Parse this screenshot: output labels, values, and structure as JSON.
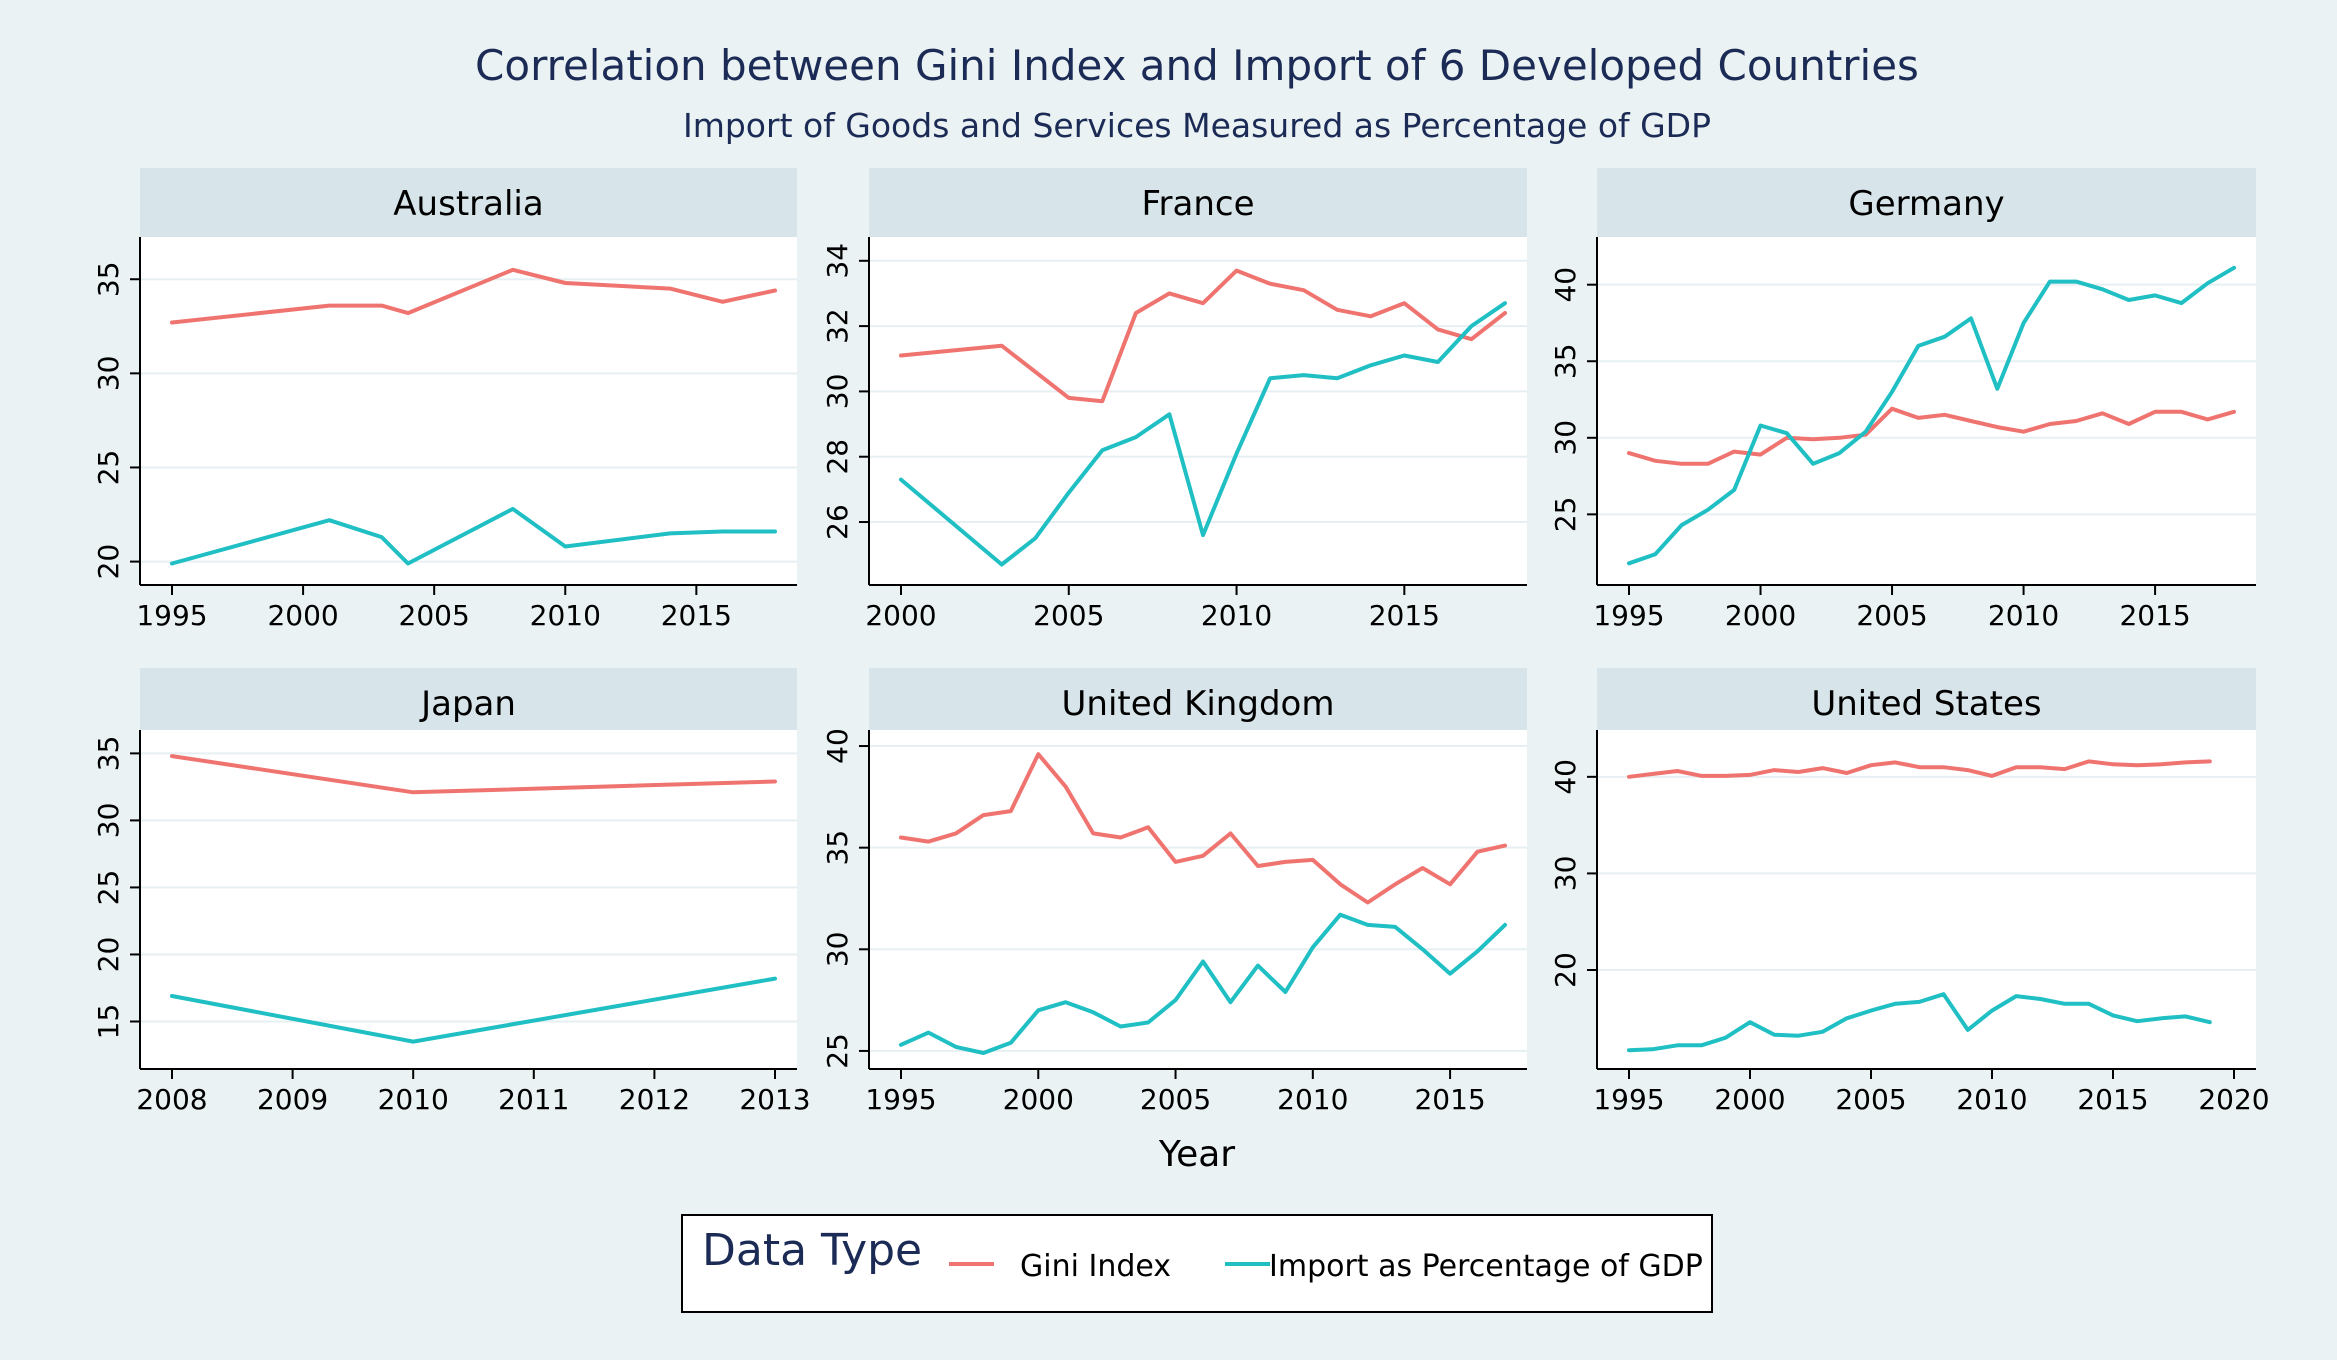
{
  "title": "Correlation between Gini Index and Import of 6 Developed Countries",
  "subtitle": "Import of Goods and Services Measured as Percentage of GDP",
  "xlabel": "Year",
  "colors": {
    "gini": "#ef7470",
    "import": "#1fbfc4",
    "title": "#1b2b55",
    "strip": "#d7e4e9",
    "background": "#eaf2f3",
    "grid": "#e6eff2"
  },
  "legend": {
    "title": "Data Type",
    "items": [
      "Gini Index",
      "Import as Percentage of GDP"
    ],
    "placement": "bottom-center"
  },
  "chart_data": [
    {
      "type": "line",
      "panel": "Australia",
      "xlim": [
        1995,
        2018
      ],
      "xticks": [
        1995,
        2000,
        2005,
        2010,
        2015
      ],
      "ylim": [
        19.5,
        36.5
      ],
      "yticks": [
        20,
        25,
        30,
        35
      ],
      "series": [
        {
          "name": "Gini Index",
          "points": [
            [
              1995,
              32.7
            ],
            [
              2001,
              33.6
            ],
            [
              2003,
              33.6
            ],
            [
              2004,
              33.2
            ],
            [
              2008,
              35.5
            ],
            [
              2010,
              34.8
            ],
            [
              2014,
              34.5
            ],
            [
              2016,
              33.8
            ],
            [
              2018,
              34.4
            ]
          ]
        },
        {
          "name": "Import as Percentage of GDP",
          "points": [
            [
              1995,
              19.9
            ],
            [
              2001,
              22.2
            ],
            [
              2003,
              21.3
            ],
            [
              2004,
              19.9
            ],
            [
              2008,
              22.8
            ],
            [
              2010,
              20.8
            ],
            [
              2014,
              21.5
            ],
            [
              2016,
              21.6
            ],
            [
              2018,
              21.6
            ]
          ]
        }
      ]
    },
    {
      "type": "line",
      "panel": "France",
      "xlim": [
        2000,
        2018
      ],
      "xticks": [
        2000,
        2005,
        2010,
        2015
      ],
      "ylim": [
        24.5,
        34.3
      ],
      "yticks": [
        26,
        28,
        30,
        32,
        34
      ],
      "series": [
        {
          "name": "Gini Index",
          "points": [
            [
              2000,
              31.1
            ],
            [
              2003,
              31.4
            ],
            [
              2005,
              29.8
            ],
            [
              2006,
              29.7
            ],
            [
              2007,
              32.4
            ],
            [
              2008,
              33.0
            ],
            [
              2009,
              32.7
            ],
            [
              2010,
              33.7
            ],
            [
              2011,
              33.3
            ],
            [
              2012,
              33.1
            ],
            [
              2013,
              32.5
            ],
            [
              2014,
              32.3
            ],
            [
              2015,
              32.7
            ],
            [
              2016,
              31.9
            ],
            [
              2017,
              31.6
            ],
            [
              2018,
              32.4
            ]
          ]
        },
        {
          "name": "Import as Percentage of GDP",
          "points": [
            [
              2000,
              27.3
            ],
            [
              2003,
              24.7
            ],
            [
              2004,
              25.5
            ],
            [
              2005,
              26.9
            ],
            [
              2006,
              28.2
            ],
            [
              2007,
              28.6
            ],
            [
              2008,
              29.3
            ],
            [
              2009,
              25.6
            ],
            [
              2010,
              28.1
            ],
            [
              2011,
              30.4
            ],
            [
              2012,
              30.5
            ],
            [
              2013,
              30.4
            ],
            [
              2014,
              30.8
            ],
            [
              2015,
              31.1
            ],
            [
              2016,
              30.9
            ],
            [
              2017,
              32.0
            ],
            [
              2018,
              32.7
            ]
          ]
        }
      ]
    },
    {
      "type": "line",
      "panel": "Germany",
      "xlim": [
        1995,
        2018
      ],
      "xticks": [
        1995,
        2000,
        2005,
        2010,
        2015
      ],
      "ylim": [
        21.3,
        42.2
      ],
      "yticks": [
        25,
        30,
        35,
        40
      ],
      "series": [
        {
          "name": "Gini Index",
          "points": [
            [
              1995,
              29.0
            ],
            [
              1996,
              28.5
            ],
            [
              1997,
              28.3
            ],
            [
              1998,
              28.3
            ],
            [
              1999,
              29.1
            ],
            [
              2000,
              28.9
            ],
            [
              2001,
              30.0
            ],
            [
              2002,
              29.9
            ],
            [
              2003,
              30.0
            ],
            [
              2004,
              30.2
            ],
            [
              2005,
              31.9
            ],
            [
              2006,
              31.3
            ],
            [
              2007,
              31.5
            ],
            [
              2008,
              31.1
            ],
            [
              2009,
              30.7
            ],
            [
              2010,
              30.4
            ],
            [
              2011,
              30.9
            ],
            [
              2012,
              31.1
            ],
            [
              2013,
              31.6
            ],
            [
              2014,
              30.9
            ],
            [
              2015,
              31.7
            ],
            [
              2016,
              31.7
            ],
            [
              2017,
              31.2
            ],
            [
              2018,
              31.7
            ]
          ]
        },
        {
          "name": "Import as Percentage of GDP",
          "points": [
            [
              1995,
              21.8
            ],
            [
              1996,
              22.4
            ],
            [
              1997,
              24.3
            ],
            [
              1998,
              25.3
            ],
            [
              1999,
              26.6
            ],
            [
              2000,
              30.8
            ],
            [
              2001,
              30.3
            ],
            [
              2002,
              28.3
            ],
            [
              2003,
              29.0
            ],
            [
              2004,
              30.4
            ],
            [
              2005,
              33.0
            ],
            [
              2006,
              36.0
            ],
            [
              2007,
              36.6
            ],
            [
              2008,
              37.8
            ],
            [
              2009,
              33.2
            ],
            [
              2010,
              37.5
            ],
            [
              2011,
              40.2
            ],
            [
              2012,
              40.2
            ],
            [
              2013,
              39.7
            ],
            [
              2014,
              39.0
            ],
            [
              2015,
              39.3
            ],
            [
              2016,
              38.8
            ],
            [
              2017,
              40.1
            ],
            [
              2018,
              41.1
            ]
          ]
        }
      ]
    },
    {
      "type": "line",
      "panel": "Japan",
      "xlim": [
        2008,
        2013
      ],
      "xticks": [
        2008,
        2009,
        2010,
        2011,
        2012,
        2013
      ],
      "ylim": [
        12.5,
        35.7
      ],
      "yticks": [
        15,
        20,
        25,
        30,
        35
      ],
      "series": [
        {
          "name": "Gini Index",
          "points": [
            [
              2008,
              34.8
            ],
            [
              2010,
              32.1
            ],
            [
              2013,
              32.9
            ]
          ]
        },
        {
          "name": "Import as Percentage of GDP",
          "points": [
            [
              2008,
              16.9
            ],
            [
              2010,
              13.5
            ],
            [
              2013,
              18.2
            ]
          ]
        }
      ]
    },
    {
      "type": "line",
      "panel": "United Kingdom",
      "xlim": [
        1995,
        2017
      ],
      "xticks": [
        1995,
        2000,
        2005,
        2010,
        2015
      ],
      "ylim": [
        24.8,
        40.1
      ],
      "yticks": [
        25,
        30,
        35,
        40
      ],
      "series": [
        {
          "name": "Gini Index",
          "points": [
            [
              1995,
              35.5
            ],
            [
              1996,
              35.3
            ],
            [
              1997,
              35.7
            ],
            [
              1998,
              36.6
            ],
            [
              1999,
              36.8
            ],
            [
              2000,
              39.6
            ],
            [
              2001,
              38.0
            ],
            [
              2002,
              35.7
            ],
            [
              2003,
              35.5
            ],
            [
              2004,
              36.0
            ],
            [
              2005,
              34.3
            ],
            [
              2006,
              34.6
            ],
            [
              2007,
              35.7
            ],
            [
              2008,
              34.1
            ],
            [
              2009,
              34.3
            ],
            [
              2010,
              34.4
            ],
            [
              2011,
              33.2
            ],
            [
              2012,
              32.3
            ],
            [
              2013,
              33.2
            ],
            [
              2014,
              34.0
            ],
            [
              2015,
              33.2
            ],
            [
              2016,
              34.8
            ],
            [
              2017,
              35.1
            ]
          ]
        },
        {
          "name": "Import as Percentage of GDP",
          "points": [
            [
              1995,
              25.3
            ],
            [
              1996,
              25.9
            ],
            [
              1997,
              25.2
            ],
            [
              1998,
              24.9
            ],
            [
              1999,
              25.4
            ],
            [
              2000,
              27.0
            ],
            [
              2001,
              27.4
            ],
            [
              2002,
              26.9
            ],
            [
              2003,
              26.2
            ],
            [
              2004,
              26.4
            ],
            [
              2005,
              27.5
            ],
            [
              2006,
              29.4
            ],
            [
              2007,
              27.4
            ],
            [
              2008,
              29.2
            ],
            [
              2009,
              27.9
            ],
            [
              2010,
              30.1
            ],
            [
              2011,
              31.7
            ],
            [
              2012,
              31.2
            ],
            [
              2013,
              31.1
            ],
            [
              2014,
              30.0
            ],
            [
              2015,
              28.8
            ],
            [
              2016,
              29.9
            ],
            [
              2017,
              31.2
            ]
          ]
        }
      ]
    },
    {
      "type": "line",
      "panel": "United States",
      "xlim": [
        1995,
        2020
      ],
      "xticks": [
        1995,
        2000,
        2005,
        2010,
        2015,
        2020
      ],
      "ylim": [
        11.2,
        43.4
      ],
      "yticks": [
        20,
        30,
        40
      ],
      "series": [
        {
          "name": "Gini Index",
          "points": [
            [
              1995,
              40.0
            ],
            [
              1996,
              40.3
            ],
            [
              1997,
              40.6
            ],
            [
              1998,
              40.1
            ],
            [
              1999,
              40.1
            ],
            [
              2000,
              40.2
            ],
            [
              2001,
              40.7
            ],
            [
              2002,
              40.5
            ],
            [
              2003,
              40.9
            ],
            [
              2004,
              40.4
            ],
            [
              2005,
              41.2
            ],
            [
              2006,
              41.5
            ],
            [
              2007,
              41.0
            ],
            [
              2008,
              41.0
            ],
            [
              2009,
              40.7
            ],
            [
              2010,
              40.1
            ],
            [
              2011,
              41.0
            ],
            [
              2012,
              41.0
            ],
            [
              2013,
              40.8
            ],
            [
              2014,
              41.6
            ],
            [
              2015,
              41.3
            ],
            [
              2016,
              41.2
            ],
            [
              2017,
              41.3
            ],
            [
              2018,
              41.5
            ],
            [
              2019,
              41.6
            ]
          ]
        },
        {
          "name": "Import as Percentage of GDP",
          "points": [
            [
              1995,
              11.7
            ],
            [
              1996,
              11.8
            ],
            [
              1997,
              12.2
            ],
            [
              1998,
              12.2
            ],
            [
              1999,
              13.0
            ],
            [
              2000,
              14.6
            ],
            [
              2001,
              13.3
            ],
            [
              2002,
              13.2
            ],
            [
              2003,
              13.6
            ],
            [
              2004,
              15.0
            ],
            [
              2005,
              15.8
            ],
            [
              2006,
              16.5
            ],
            [
              2007,
              16.7
            ],
            [
              2008,
              17.5
            ],
            [
              2009,
              13.8
            ],
            [
              2010,
              15.8
            ],
            [
              2011,
              17.3
            ],
            [
              2012,
              17.0
            ],
            [
              2013,
              16.5
            ],
            [
              2014,
              16.5
            ],
            [
              2015,
              15.3
            ],
            [
              2016,
              14.7
            ],
            [
              2017,
              15.0
            ],
            [
              2018,
              15.2
            ],
            [
              2019,
              14.6
            ]
          ]
        }
      ]
    }
  ]
}
